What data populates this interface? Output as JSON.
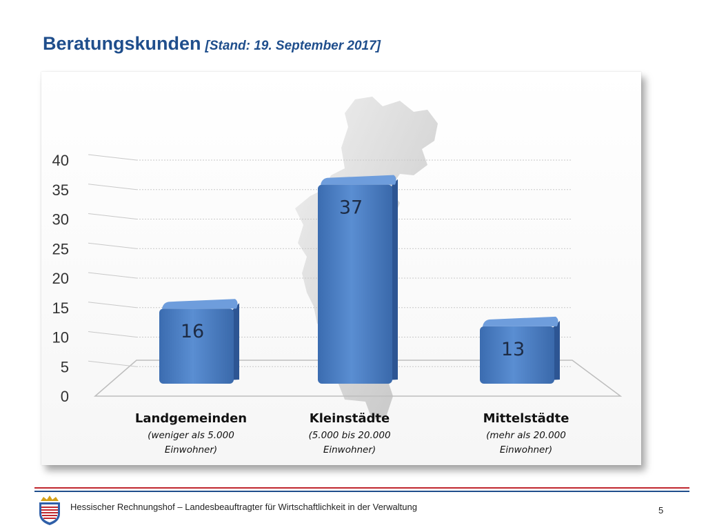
{
  "header": {
    "title": "Beratungskunden",
    "subtitle": "[Stand: 19. September 2017]"
  },
  "chart_data": {
    "type": "bar",
    "categories": [
      "Landgemeinden",
      "Kleinstädte",
      "Mittelstädte"
    ],
    "category_notes": [
      [
        "(weniger als 5.000",
        "Einwohner)"
      ],
      [
        "(5.000 bis 20.000",
        "Einwohner)"
      ],
      [
        "(mehr als 20.000",
        "Einwohner)"
      ]
    ],
    "values": [
      16,
      37,
      13
    ],
    "data_labels": [
      "16",
      "37",
      "13"
    ],
    "ylim": [
      0,
      40
    ],
    "y_ticks": [
      0,
      5,
      10,
      15,
      20,
      25,
      30,
      35,
      40
    ],
    "grid": true,
    "bar_color": "#4a7cc0",
    "background_image": "hesse-map-silhouette"
  },
  "footer": {
    "organization": "Hessischer Rechnungshof – Landesbeauftragter für Wirtschaftlichkeit in der Verwaltung",
    "page_number": "5",
    "line_colors": [
      "#c0262d",
      "#1f4e8c"
    ]
  }
}
